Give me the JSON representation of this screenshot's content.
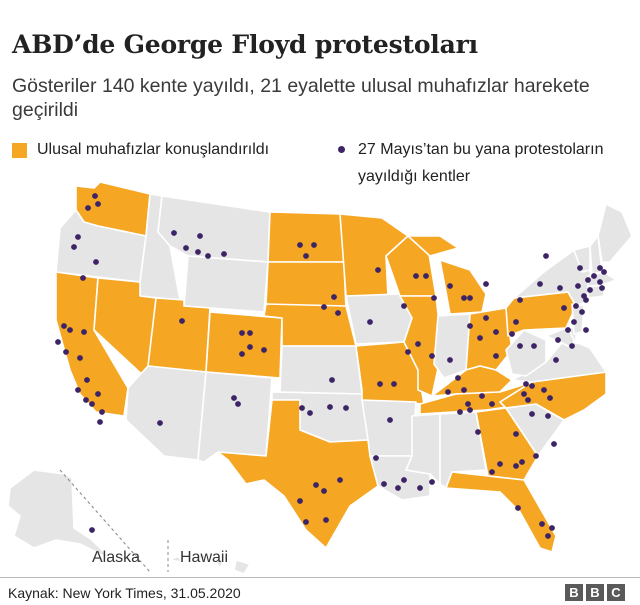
{
  "title": "ABD’de George Floyd protestoları",
  "subtitle": "Gösteriler 140 kente yayıldı, 21 eyalette ulusal muhafızlar harekete geçirildi",
  "legend": {
    "guard_label": "Ulusal muhafızlar konuşlandırıldı",
    "cities_label": "27 Mayıs’tan bu yana protestoların yayıldığı kentler"
  },
  "colors": {
    "guard_state": "#f5a623",
    "other_state": "#e5e5e5",
    "state_border": "#ffffff",
    "city_dot": "#3d2466"
  },
  "insets": {
    "alaska": "Alaska",
    "hawaii": "Hawaii"
  },
  "source": "Kaynak: New York Times, 31.05.2020",
  "brand": {
    "letters": [
      "B",
      "B",
      "C"
    ]
  }
}
